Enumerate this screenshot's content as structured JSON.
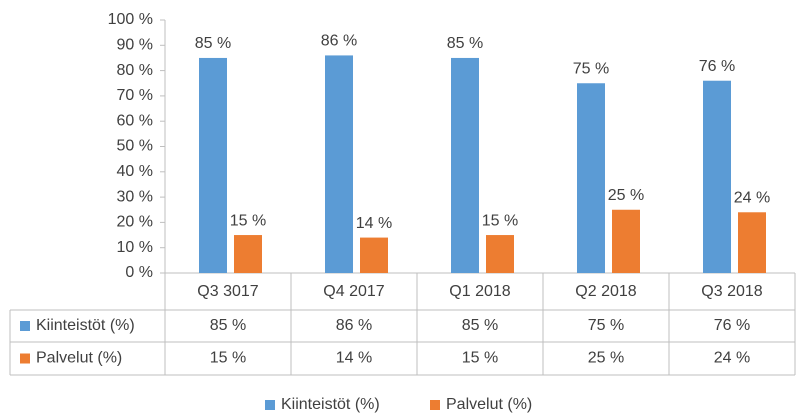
{
  "chart_data": {
    "type": "bar",
    "categories": [
      "Q3 3017",
      "Q4 2017",
      "Q1 2018",
      "Q2 2018",
      "Q3 2018"
    ],
    "series": [
      {
        "name": "Kiinteistöt (%)",
        "color": "#5b9bd5",
        "values": [
          85,
          86,
          85,
          75,
          76
        ],
        "value_labels": [
          "85 %",
          "86 %",
          "85 %",
          "75 %",
          "76 %"
        ]
      },
      {
        "name": "Palvelut (%)",
        "color": "#ed7d31",
        "values": [
          15,
          14,
          15,
          25,
          24
        ],
        "value_labels": [
          "15 %",
          "14 %",
          "15 %",
          "25 %",
          "24 %"
        ]
      }
    ],
    "ylim": [
      0,
      100
    ],
    "yticks": [
      {
        "value": 0,
        "label": "0 %"
      },
      {
        "value": 10,
        "label": "10 %"
      },
      {
        "value": 20,
        "label": "20 %"
      },
      {
        "value": 30,
        "label": "30 %"
      },
      {
        "value": 40,
        "label": "40 %"
      },
      {
        "value": 50,
        "label": "50 %"
      },
      {
        "value": 60,
        "label": "60 %"
      },
      {
        "value": 70,
        "label": "70 %"
      },
      {
        "value": 80,
        "label": "80 %"
      },
      {
        "value": 90,
        "label": "90 %"
      },
      {
        "value": 100,
        "label": "100 %"
      }
    ],
    "grid": false,
    "data_table": true,
    "legend": "bottom"
  }
}
